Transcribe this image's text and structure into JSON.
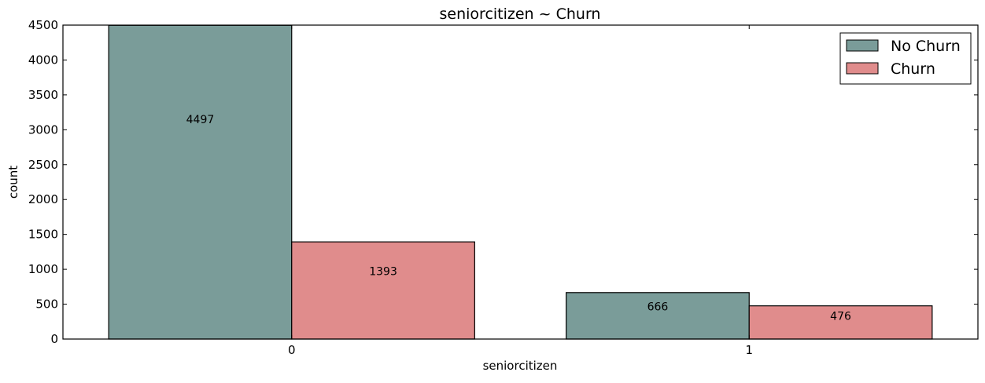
{
  "chart_data": {
    "type": "bar",
    "title": "seniorcitizen ~ Churn",
    "xlabel": "seniorcitizen",
    "ylabel": "count",
    "categories": [
      "0",
      "1"
    ],
    "series": [
      {
        "name": "No Churn",
        "values": [
          4497,
          666
        ],
        "color": "#7a9c99"
      },
      {
        "name": "Churn",
        "values": [
          1393,
          476
        ],
        "color": "#e08c8c"
      }
    ],
    "data_labels": [
      [
        "4497",
        "666"
      ],
      [
        "1393",
        "476"
      ]
    ],
    "ylim": [
      0,
      4500
    ],
    "yticks": [
      0,
      500,
      1000,
      1500,
      2000,
      2500,
      3000,
      3500,
      4000,
      4500
    ],
    "ytick_labels": [
      "0",
      "500",
      "1000",
      "1500",
      "2000",
      "2500",
      "3000",
      "3500",
      "4000",
      "4500"
    ],
    "grid": false,
    "legend_position": "top-right"
  }
}
